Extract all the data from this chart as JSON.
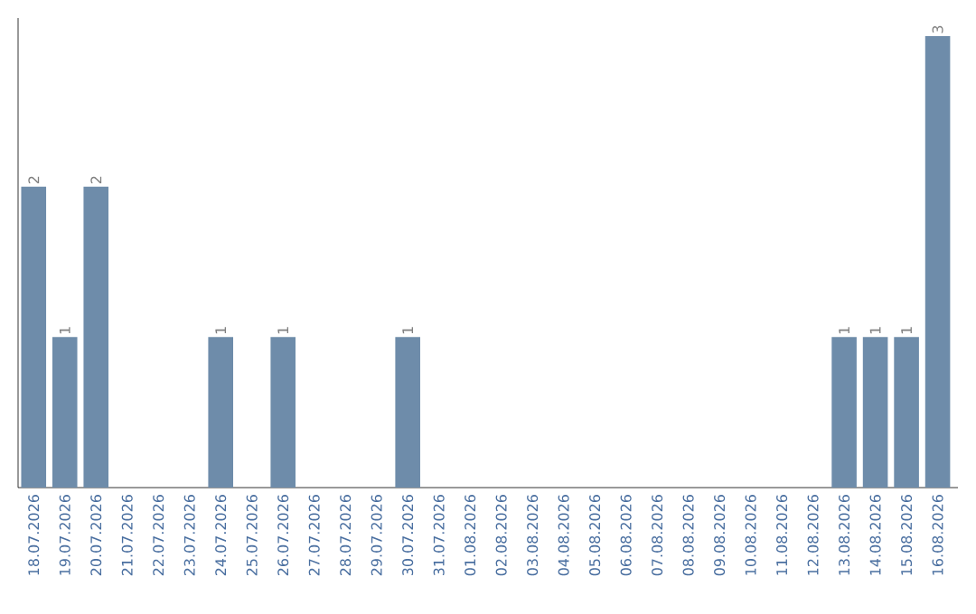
{
  "chart_data": {
    "type": "bar",
    "categories": [
      "18.07.2026",
      "19.07.2026",
      "20.07.2026",
      "21.07.2026",
      "22.07.2026",
      "23.07.2026",
      "24.07.2026",
      "25.07.2026",
      "26.07.2026",
      "27.07.2026",
      "28.07.2026",
      "29.07.2026",
      "30.07.2026",
      "31.07.2026",
      "01.08.2026",
      "02.08.2026",
      "03.08.2026",
      "04.08.2026",
      "05.08.2026",
      "06.08.2026",
      "07.08.2026",
      "08.08.2026",
      "09.08.2026",
      "10.08.2026",
      "11.08.2026",
      "12.08.2026",
      "13.08.2026",
      "14.08.2026",
      "15.08.2026",
      "16.08.2026"
    ],
    "values": [
      2,
      1,
      2,
      0,
      0,
      0,
      1,
      0,
      1,
      0,
      0,
      0,
      1,
      0,
      0,
      0,
      0,
      0,
      0,
      0,
      0,
      0,
      0,
      0,
      0,
      0,
      1,
      1,
      1,
      3
    ],
    "value_labels": [
      "2",
      "1",
      "2",
      null,
      null,
      null,
      "1",
      null,
      "1",
      null,
      null,
      null,
      "1",
      null,
      null,
      null,
      null,
      null,
      null,
      null,
      null,
      null,
      null,
      null,
      null,
      null,
      "1",
      "1",
      "1",
      "3"
    ],
    "color": "#6e8caa"
  }
}
